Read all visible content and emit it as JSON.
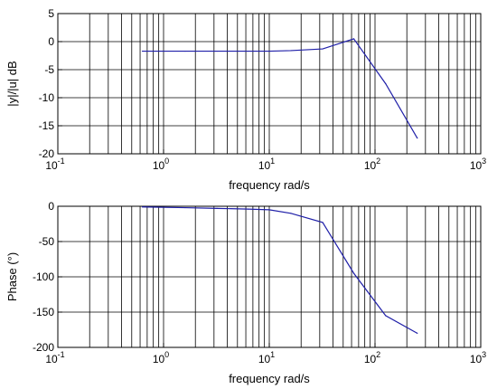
{
  "chart_data": [
    {
      "type": "line",
      "xscale": "log",
      "xlim": [
        0.1,
        1000
      ],
      "ylim": [
        -20,
        5
      ],
      "xlabel": "frequency rad/s",
      "ylabel": "|y|/|u| dB",
      "grid": true,
      "x_ticks": [
        {
          "base": "10",
          "exp": "-1"
        },
        {
          "base": "10",
          "exp": "0"
        },
        {
          "base": "10",
          "exp": "1"
        },
        {
          "base": "10",
          "exp": "2"
        },
        {
          "base": "10",
          "exp": "3"
        }
      ],
      "y_ticks": [
        "-20",
        "-15",
        "-10",
        "-5",
        "0",
        "5"
      ],
      "series": [
        {
          "color": "#1f1fa8",
          "x": [
            0.63,
            1.6,
            3.2,
            6.3,
            10,
            16,
            32,
            63,
            126,
            251
          ],
          "y": [
            -1.7,
            -1.7,
            -1.7,
            -1.7,
            -1.7,
            -1.6,
            -1.3,
            0.5,
            -7.5,
            -17.2
          ]
        }
      ]
    },
    {
      "type": "line",
      "xscale": "log",
      "xlim": [
        0.1,
        1000
      ],
      "ylim": [
        -200,
        0
      ],
      "xlabel": "frequency rad/s",
      "ylabel": "Phase (°)",
      "grid": true,
      "x_ticks": [
        {
          "base": "10",
          "exp": "-1"
        },
        {
          "base": "10",
          "exp": "0"
        },
        {
          "base": "10",
          "exp": "1"
        },
        {
          "base": "10",
          "exp": "2"
        },
        {
          "base": "10",
          "exp": "3"
        }
      ],
      "y_ticks": [
        "-200",
        "-150",
        "-100",
        "-50",
        "0"
      ],
      "series": [
        {
          "color": "#1f1fa8",
          "x": [
            0.63,
            1.6,
            3.2,
            6.3,
            10,
            16,
            32,
            63,
            126,
            251
          ],
          "y": [
            -1,
            -2,
            -3,
            -4,
            -5,
            -10,
            -23,
            -95,
            -155,
            -180
          ]
        }
      ]
    }
  ]
}
